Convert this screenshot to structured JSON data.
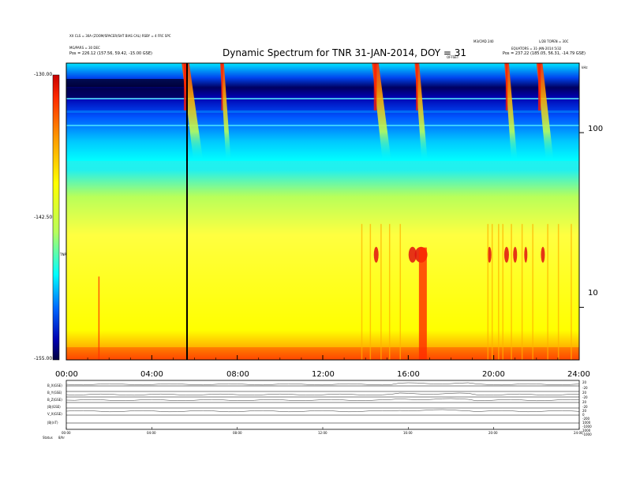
{
  "chart_data": {
    "type": "heatmap",
    "title": "Dynamic Spectrum for TNR 31-JAN-2014, DOY = 31",
    "header_left": [
      "XX CLS = 30A (ZOOM/SPACER/SHT BIAS CAL) RSBY = 4 FRC SPC",
      "MG/PARS = 30 DEC",
      "Pos = 226.12 (157.56, 59.42, -15.00 GSE)"
    ],
    "header_right": [
      "M3/CMD 240",
      "L/2B TOPEN = 30C",
      "EQUATORS = 31-JAN-2014 5/32",
      "Pos = 237.22 (185.05, 56.31, -14.79 GSE)"
    ],
    "header_mid": "OFFSET",
    "x_tick_labels": [
      "00:00",
      "04:00",
      "08:00",
      "12:00",
      "16:00",
      "20:00",
      "24:00"
    ],
    "x_hours": [
      0,
      4,
      8,
      12,
      16,
      20,
      24
    ],
    "y_tick_labels": [
      "100",
      "10"
    ],
    "y_tick_values": [
      100,
      10
    ],
    "y_scale": "log",
    "y_range": [
      5,
      250
    ],
    "y_top_label": "kHz",
    "colorbar": {
      "tick_labels": [
        "-130.00",
        "-142.50",
        "-155.00"
      ],
      "label": "TNR",
      "colors": [
        "#c80000",
        "#ff2a00",
        "#ff9900",
        "#ffff00",
        "#b8ff5a",
        "#00ffff",
        "#0066ff",
        "#0000b0",
        "#000040"
      ]
    },
    "events": [
      {
        "start_hour": 5.4,
        "end_hour": 6.4
      },
      {
        "start_hour": 7.2,
        "end_hour": 7.7
      },
      {
        "start_hour": 14.3,
        "end_hour": 15.2
      },
      {
        "start_hour": 16.3,
        "end_hour": 16.9
      },
      {
        "start_hour": 20.5,
        "end_hour": 21.1
      },
      {
        "start_hour": 22.0,
        "end_hour": 22.8
      }
    ],
    "lower_panel": {
      "row_labels": [
        "B_X(GSE)",
        "B_Y(GSE)",
        "B_Z(GSE)",
        "|B|(GSE)",
        "V_X(GSE)",
        "|B|(nT)",
        "Status"
      ],
      "right_labels": [
        "20",
        "-20",
        "20",
        "-20",
        "20",
        "-20",
        "20",
        "0",
        "-200",
        "1000",
        "-1000",
        "1000",
        "-1000"
      ],
      "x_tick_labels": [
        "00:00",
        "04:00",
        "08:00",
        "12:00",
        "16:00",
        "20:00",
        "24:00"
      ],
      "bottom_left": "8/hr"
    }
  }
}
